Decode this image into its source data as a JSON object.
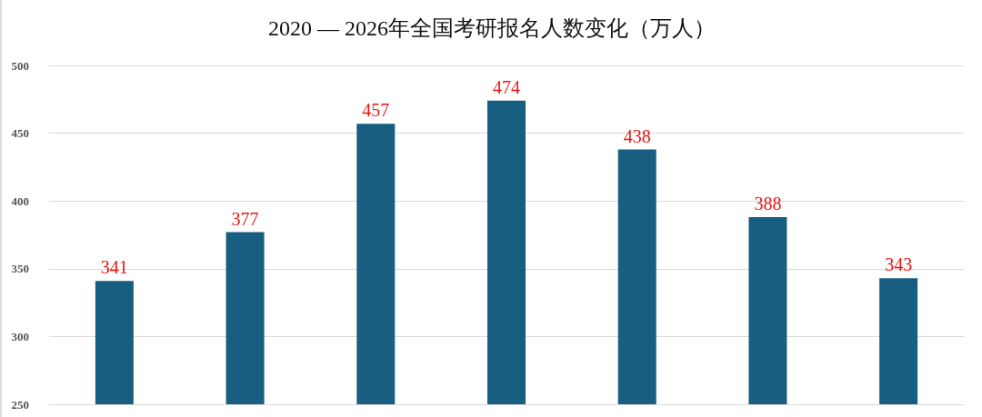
{
  "chart_data": {
    "type": "bar",
    "title": "2020 — 2026年全国考研报名人数变化（万人）",
    "categories": [
      null,
      null,
      null,
      null,
      null,
      null,
      null
    ],
    "values": [
      341,
      377,
      457,
      474,
      438,
      388,
      343
    ],
    "color": "#175e80",
    "ylim": [
      250,
      500
    ],
    "yticks": [
      250,
      300,
      350,
      400,
      450,
      500
    ],
    "grid": "y",
    "data_labels": true
  }
}
